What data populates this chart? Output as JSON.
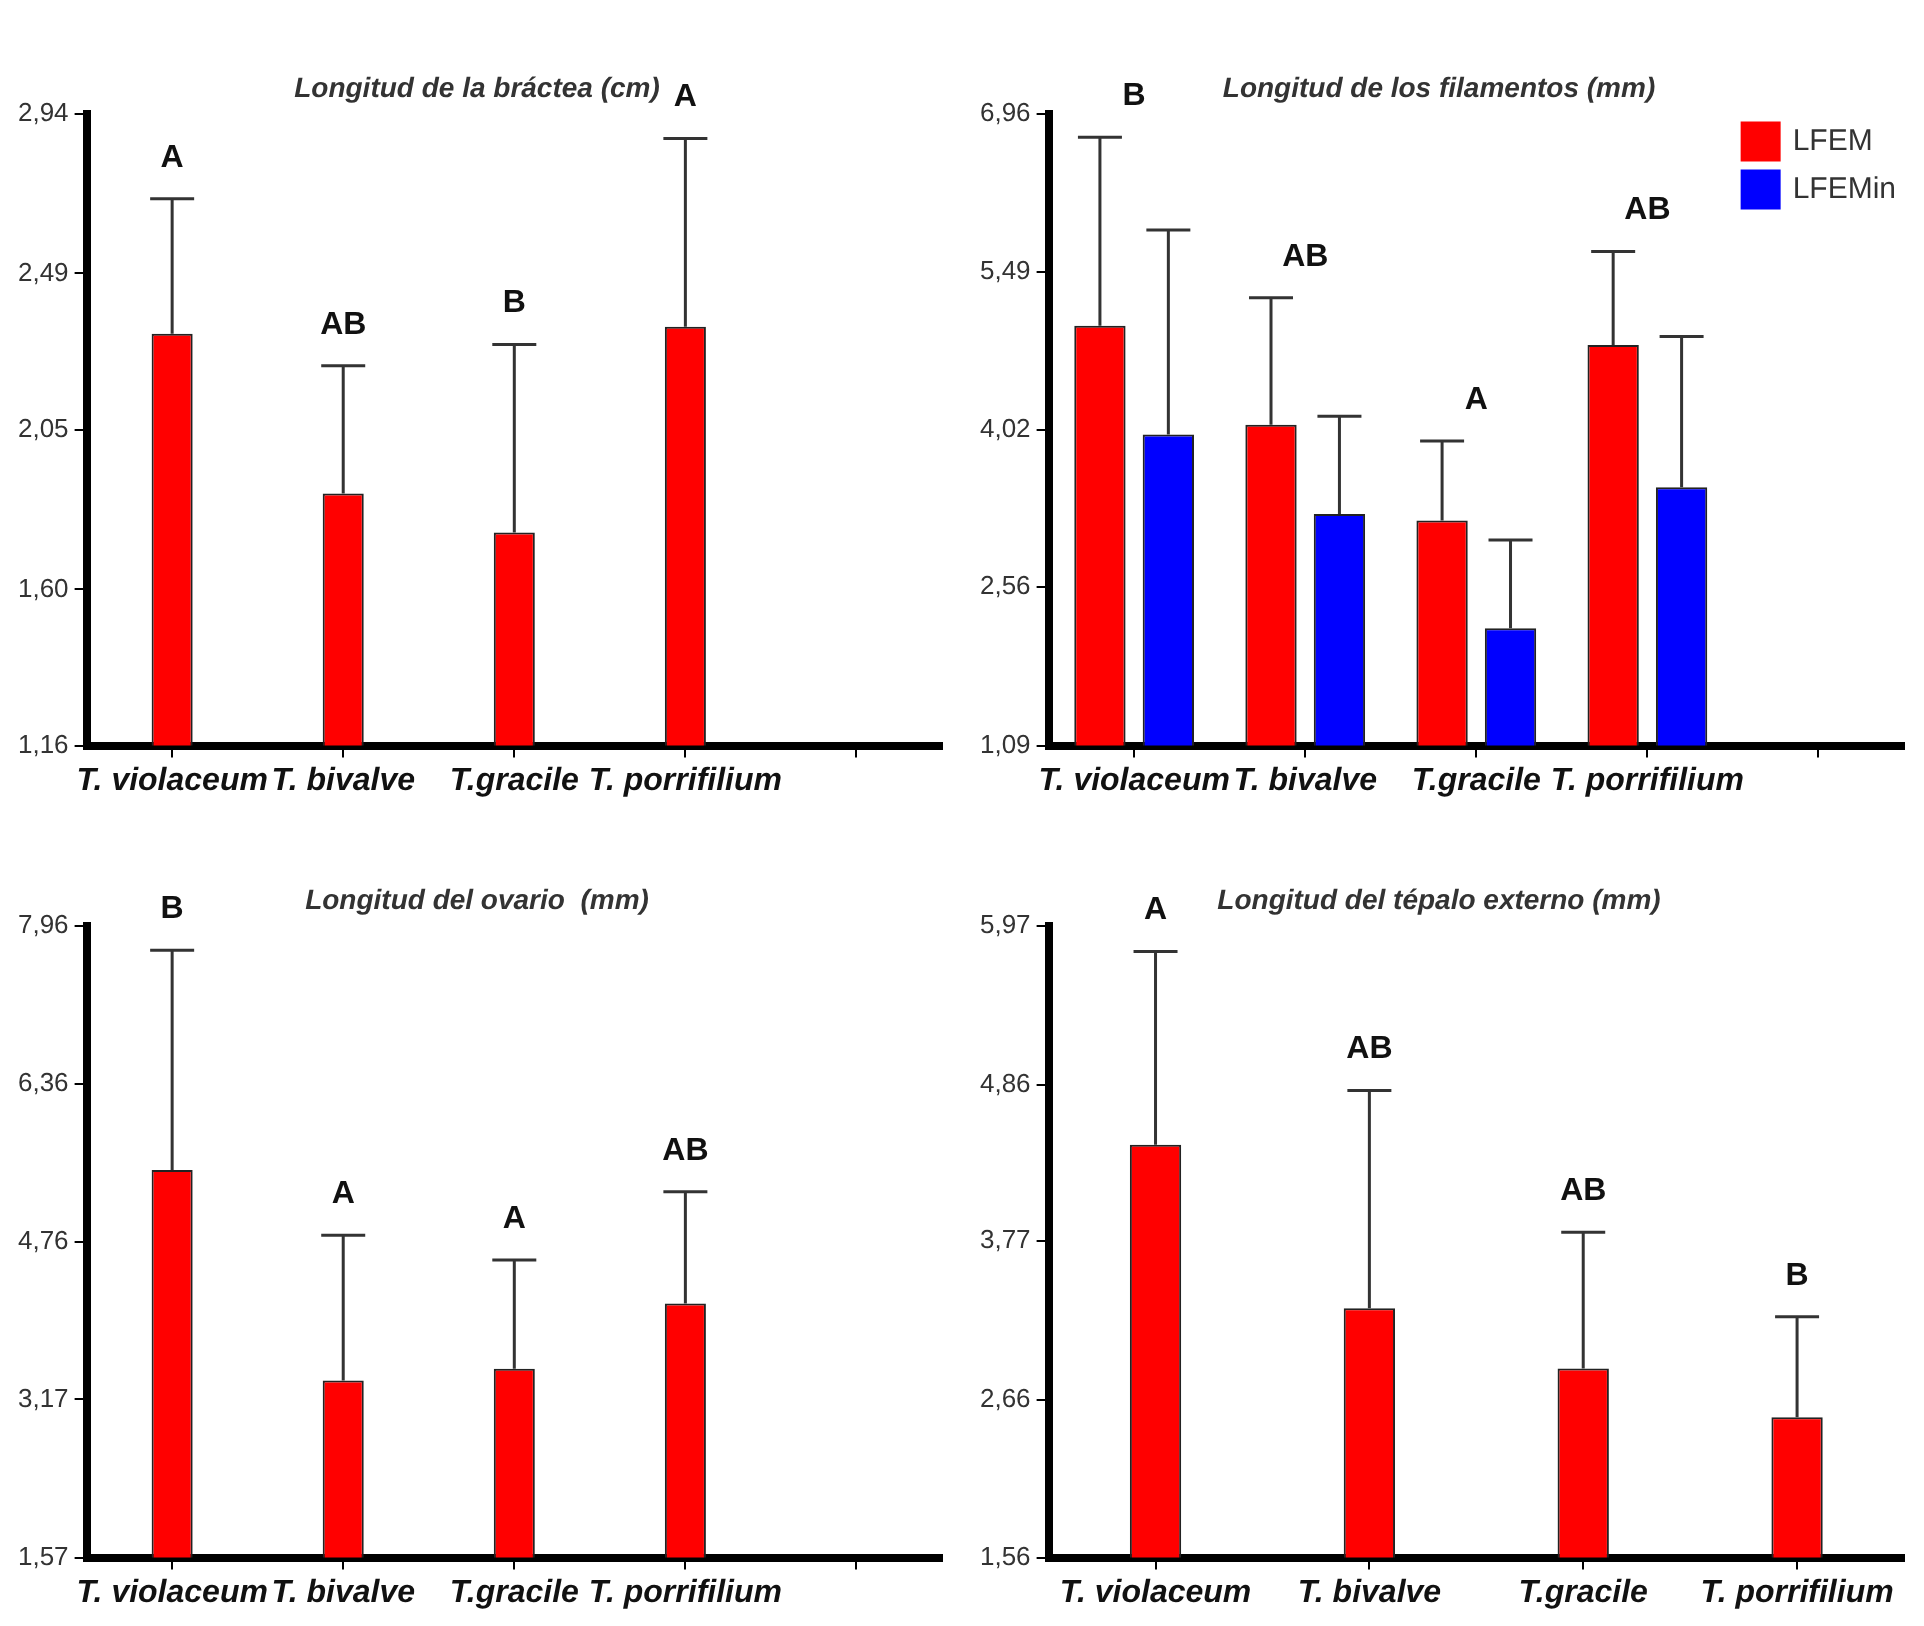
{
  "chart_data": [
    {
      "type": "bar",
      "title": "Longitud de la bráctea (cm)",
      "categories": [
        "T. violaceum",
        "T. bivalve",
        "T.gracile",
        "T. porrifilium",
        null
      ],
      "values": [
        2.32,
        1.87,
        1.76,
        2.34,
        null
      ],
      "color": "#ff0000",
      "errors": [
        [
          2.32,
          2.7
        ],
        [
          1.87,
          2.23
        ],
        [
          1.76,
          2.29
        ],
        [
          2.34,
          2.87
        ],
        null
      ],
      "ylim": [
        1.16,
        2.94
      ],
      "yticks": [
        {
          "value": 1.16,
          "label": "1,16"
        },
        {
          "value": 1.6,
          "label": "1,60"
        },
        {
          "value": 2.05,
          "label": "2,05"
        },
        {
          "value": 2.49,
          "label": "2,49"
        },
        {
          "value": 2.94,
          "label": "2,94"
        }
      ],
      "grid": false,
      "legend": false,
      "annotations": [
        "A",
        "AB",
        "B",
        "A"
      ]
    },
    {
      "type": "bar",
      "title": "Longitud de los filamentos (mm)",
      "categories": [
        "T. violaceum",
        "T. bivalve",
        "T.gracile",
        "T. porrifilium",
        null
      ],
      "series": [
        {
          "name": "LFEM",
          "color": "#ff0000",
          "values": [
            4.99,
            4.07,
            3.18,
            4.81,
            null
          ],
          "errors": [
            [
              4.99,
              6.74
            ],
            [
              4.07,
              5.25
            ],
            [
              3.18,
              3.92
            ],
            [
              4.81,
              5.68
            ],
            null
          ]
        },
        {
          "name": "LFEMin",
          "color": "#0000ff",
          "values": [
            3.98,
            3.24,
            2.18,
            3.49,
            null
          ],
          "errors": [
            [
              3.98,
              5.88
            ],
            [
              3.24,
              4.15
            ],
            [
              2.18,
              3.0
            ],
            [
              3.49,
              4.89
            ],
            null
          ]
        }
      ],
      "ylim": [
        1.09,
        6.96
      ],
      "yticks": [
        {
          "value": 1.09,
          "label": "1,09"
        },
        {
          "value": 2.56,
          "label": "2,56"
        },
        {
          "value": 4.02,
          "label": "4,02"
        },
        {
          "value": 5.49,
          "label": "5,49"
        },
        {
          "value": 6.96,
          "label": "6,96"
        }
      ],
      "grid": false,
      "legend": "top right",
      "annotations": [
        "B",
        "AB",
        "A",
        "AB"
      ]
    },
    {
      "type": "bar",
      "title": "Longitud del ovario  (mm)",
      "categories": [
        "T. violaceum",
        "T. bivalve",
        "T.gracile",
        "T. porrifilium",
        null
      ],
      "values": [
        5.49,
        3.36,
        3.48,
        4.14,
        null
      ],
      "color": "#ff0000",
      "errors": [
        [
          5.49,
          7.71
        ],
        [
          3.36,
          4.83
        ],
        [
          3.48,
          4.58
        ],
        [
          4.14,
          5.27
        ],
        null
      ],
      "ylim": [
        1.57,
        7.96
      ],
      "yticks": [
        {
          "value": 1.57,
          "label": "1,57"
        },
        {
          "value": 3.17,
          "label": "3,17"
        },
        {
          "value": 4.76,
          "label": "4,76"
        },
        {
          "value": 6.36,
          "label": "6,36"
        },
        {
          "value": 7.96,
          "label": "7,96"
        }
      ],
      "grid": false,
      "legend": false,
      "annotations": [
        "B",
        "A",
        "A",
        "AB"
      ]
    },
    {
      "type": "bar",
      "title": "Longitud del tépalo externo (mm)",
      "categories": [
        "T. violaceum",
        "T. bivalve",
        "T.gracile",
        "T. porrifilium"
      ],
      "values": [
        4.44,
        3.3,
        2.88,
        2.54
      ],
      "color": "#ff0000",
      "errors": [
        [
          4.44,
          5.79
        ],
        [
          3.3,
          4.82
        ],
        [
          2.88,
          3.83
        ],
        [
          2.54,
          3.24
        ]
      ],
      "ylim": [
        1.56,
        5.97
      ],
      "yticks": [
        {
          "value": 1.56,
          "label": "1,56"
        },
        {
          "value": 2.66,
          "label": "2,66"
        },
        {
          "value": 3.77,
          "label": "3,77"
        },
        {
          "value": 4.86,
          "label": "4,86"
        },
        {
          "value": 5.97,
          "label": "5,97"
        }
      ],
      "grid": false,
      "legend": false,
      "annotations": [
        "A",
        "AB",
        "AB",
        "B"
      ]
    }
  ]
}
